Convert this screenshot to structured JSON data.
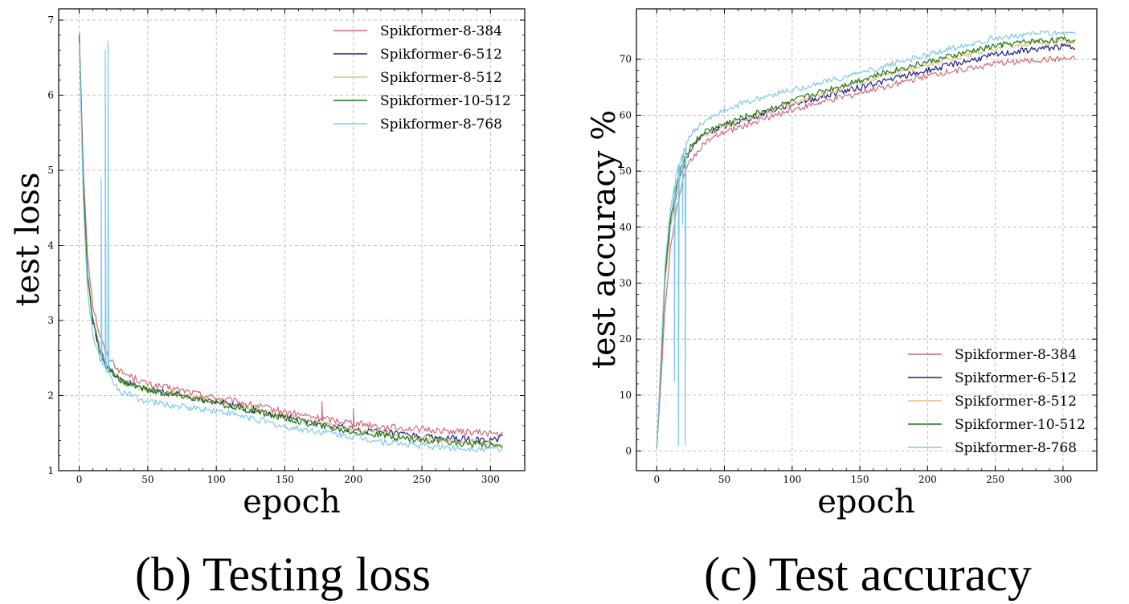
{
  "chart_data": [
    {
      "type": "line",
      "caption": "(b) Testing loss",
      "xlabel": "epoch",
      "ylabel": "test loss",
      "xlim": [
        -15,
        325
      ],
      "ylim": [
        1,
        7.15
      ],
      "xticks": [
        0,
        50,
        100,
        150,
        200,
        250,
        300
      ],
      "yticks": [
        1,
        2,
        3,
        4,
        5,
        6,
        7
      ],
      "grid": true,
      "legend_position": "upper-right",
      "series": [
        {
          "name": "Spikformer-8-384",
          "color": "#d0697a",
          "points": [
            [
              0,
              6.85
            ],
            [
              3,
              5.0
            ],
            [
              6,
              3.9
            ],
            [
              10,
              3.2
            ],
            [
              15,
              2.8
            ],
            [
              20,
              2.55
            ],
            [
              30,
              2.32
            ],
            [
              50,
              2.15
            ],
            [
              75,
              2.07
            ],
            [
              100,
              1.97
            ],
            [
              125,
              1.88
            ],
            [
              150,
              1.78
            ],
            [
              175,
              1.7
            ],
            [
              200,
              1.64
            ],
            [
              225,
              1.58
            ],
            [
              250,
              1.55
            ],
            [
              275,
              1.52
            ],
            [
              300,
              1.5
            ],
            [
              309,
              1.48
            ]
          ],
          "spikes": [
            [
              177,
              1.92
            ],
            [
              200,
              1.82
            ]
          ]
        },
        {
          "name": "Spikformer-6-512",
          "color": "#1a1a8c",
          "points": [
            [
              0,
              6.85
            ],
            [
              3,
              4.8
            ],
            [
              6,
              3.6
            ],
            [
              10,
              3.0
            ],
            [
              15,
              2.6
            ],
            [
              20,
              2.4
            ],
            [
              30,
              2.2
            ],
            [
              50,
              2.08
            ],
            [
              75,
              2.0
            ],
            [
              100,
              1.92
            ],
            [
              125,
              1.82
            ],
            [
              150,
              1.72
            ],
            [
              175,
              1.62
            ],
            [
              200,
              1.55
            ],
            [
              225,
              1.5
            ],
            [
              250,
              1.45
            ],
            [
              275,
              1.42
            ],
            [
              300,
              1.4
            ],
            [
              309,
              1.45
            ]
          ],
          "spikes": []
        },
        {
          "name": "Spikformer-8-512",
          "color": "#e3c27a",
          "points": [
            [
              0,
              6.85
            ],
            [
              3,
              4.8
            ],
            [
              6,
              3.6
            ],
            [
              10,
              3.0
            ],
            [
              15,
              2.6
            ],
            [
              20,
              2.4
            ],
            [
              30,
              2.2
            ],
            [
              50,
              2.08
            ],
            [
              75,
              2.0
            ],
            [
              100,
              1.92
            ],
            [
              125,
              1.82
            ],
            [
              150,
              1.72
            ],
            [
              175,
              1.62
            ],
            [
              200,
              1.55
            ],
            [
              225,
              1.49
            ],
            [
              250,
              1.43
            ],
            [
              275,
              1.39
            ],
            [
              300,
              1.36
            ],
            [
              309,
              1.35
            ]
          ],
          "spikes": []
        },
        {
          "name": "Spikformer-10-512",
          "color": "#1a7a1a",
          "points": [
            [
              0,
              6.8
            ],
            [
              3,
              4.8
            ],
            [
              6,
              3.6
            ],
            [
              10,
              3.0
            ],
            [
              15,
              2.6
            ],
            [
              20,
              2.38
            ],
            [
              30,
              2.2
            ],
            [
              50,
              2.07
            ],
            [
              75,
              2.0
            ],
            [
              100,
              1.9
            ],
            [
              125,
              1.8
            ],
            [
              150,
              1.7
            ],
            [
              175,
              1.6
            ],
            [
              200,
              1.52
            ],
            [
              225,
              1.46
            ],
            [
              250,
              1.41
            ],
            [
              275,
              1.37
            ],
            [
              300,
              1.34
            ],
            [
              309,
              1.33
            ]
          ],
          "spikes": []
        },
        {
          "name": "Spikformer-8-768",
          "color": "#7ec8e8",
          "points": [
            [
              0,
              6.7
            ],
            [
              3,
              4.6
            ],
            [
              6,
              3.4
            ],
            [
              10,
              2.8
            ],
            [
              15,
              2.5
            ],
            [
              20,
              2.3
            ],
            [
              30,
              2.05
            ],
            [
              50,
              1.92
            ],
            [
              75,
              1.85
            ],
            [
              100,
              1.8
            ],
            [
              125,
              1.7
            ],
            [
              150,
              1.58
            ],
            [
              175,
              1.52
            ],
            [
              200,
              1.45
            ],
            [
              225,
              1.38
            ],
            [
              250,
              1.33
            ],
            [
              275,
              1.3
            ],
            [
              300,
              1.29
            ],
            [
              309,
              1.3
            ]
          ],
          "spikes": [
            [
              16,
              4.9
            ],
            [
              19,
              6.6
            ],
            [
              21,
              6.72
            ]
          ]
        }
      ]
    },
    {
      "type": "line",
      "caption": "(c) Test accuracy",
      "xlabel": "epoch",
      "ylabel": "test accuracy %",
      "xlim": [
        -15,
        325
      ],
      "ylim": [
        -3.5,
        79
      ],
      "xticks": [
        0,
        50,
        100,
        150,
        200,
        250,
        300
      ],
      "yticks": [
        0,
        10,
        20,
        30,
        40,
        50,
        60,
        70
      ],
      "grid": true,
      "legend_position": "lower-right",
      "series": [
        {
          "name": "Spikformer-8-384",
          "color": "#d0697a",
          "points": [
            [
              0,
              0.5
            ],
            [
              3,
              12
            ],
            [
              6,
              25
            ],
            [
              10,
              36
            ],
            [
              15,
              44
            ],
            [
              20,
              49
            ],
            [
              25,
              52
            ],
            [
              35,
              55
            ],
            [
              50,
              57
            ],
            [
              75,
              59
            ],
            [
              100,
              61
            ],
            [
              125,
              62.5
            ],
            [
              150,
              64
            ],
            [
              175,
              65.5
            ],
            [
              200,
              67
            ],
            [
              225,
              68.2
            ],
            [
              250,
              69.2
            ],
            [
              275,
              69.8
            ],
            [
              300,
              70.0
            ],
            [
              309,
              70.0
            ]
          ],
          "spikes": []
        },
        {
          "name": "Spikformer-6-512",
          "color": "#1a1a8c",
          "points": [
            [
              0,
              0.5
            ],
            [
              3,
              15
            ],
            [
              6,
              30
            ],
            [
              10,
              40
            ],
            [
              15,
              47
            ],
            [
              20,
              51
            ],
            [
              25,
              54
            ],
            [
              35,
              56.5
            ],
            [
              50,
              58
            ],
            [
              75,
              60
            ],
            [
              100,
              62
            ],
            [
              125,
              63.5
            ],
            [
              150,
              65
            ],
            [
              175,
              66.5
            ],
            [
              200,
              68
            ],
            [
              225,
              69.5
            ],
            [
              250,
              70.8
            ],
            [
              275,
              71.7
            ],
            [
              300,
              72.3
            ],
            [
              309,
              72.2
            ]
          ],
          "spikes": []
        },
        {
          "name": "Spikformer-8-512",
          "color": "#e3c27a",
          "points": [
            [
              0,
              0.5
            ],
            [
              3,
              15
            ],
            [
              6,
              30
            ],
            [
              10,
              40
            ],
            [
              15,
              47
            ],
            [
              20,
              51
            ],
            [
              25,
              54
            ],
            [
              35,
              56.5
            ],
            [
              50,
              58
            ],
            [
              75,
              60
            ],
            [
              100,
              62
            ],
            [
              125,
              64
            ],
            [
              150,
              65.8
            ],
            [
              175,
              67.5
            ],
            [
              200,
              69
            ],
            [
              225,
              70.5
            ],
            [
              250,
              72
            ],
            [
              275,
              72.9
            ],
            [
              300,
              73.3
            ],
            [
              309,
              73.0
            ]
          ],
          "spikes": []
        },
        {
          "name": "Spikformer-10-512",
          "color": "#1a7a1a",
          "points": [
            [
              0,
              0.5
            ],
            [
              3,
              15
            ],
            [
              6,
              31
            ],
            [
              10,
              41
            ],
            [
              15,
              48
            ],
            [
              20,
              52
            ],
            [
              25,
              54.5
            ],
            [
              35,
              57
            ],
            [
              50,
              58.5
            ],
            [
              75,
              60.5
            ],
            [
              100,
              62.5
            ],
            [
              125,
              64.5
            ],
            [
              150,
              66.3
            ],
            [
              175,
              68
            ],
            [
              200,
              69.5
            ],
            [
              225,
              71
            ],
            [
              250,
              72.4
            ],
            [
              275,
              73.2
            ],
            [
              300,
              73.5
            ],
            [
              309,
              73.3
            ]
          ],
          "spikes": []
        },
        {
          "name": "Spikformer-8-768",
          "color": "#7ec8e8",
          "points": [
            [
              0,
              0.5
            ],
            [
              3,
              16
            ],
            [
              6,
              33
            ],
            [
              10,
              43
            ],
            [
              15,
              50
            ],
            [
              20,
              54
            ],
            [
              25,
              56.5
            ],
            [
              35,
              59
            ],
            [
              50,
              61
            ],
            [
              75,
              63
            ],
            [
              100,
              64.5
            ],
            [
              125,
              66
            ],
            [
              150,
              67.5
            ],
            [
              175,
              69.2
            ],
            [
              200,
              70.8
            ],
            [
              225,
              72.4
            ],
            [
              250,
              73.8
            ],
            [
              275,
              74.5
            ],
            [
              300,
              74.8
            ],
            [
              309,
              74.6
            ]
          ],
          "spikes": [
            [
              13,
              12.5
            ],
            [
              16,
              1.0
            ],
            [
              19,
              40.5
            ],
            [
              21,
              1.0
            ]
          ]
        }
      ]
    }
  ]
}
